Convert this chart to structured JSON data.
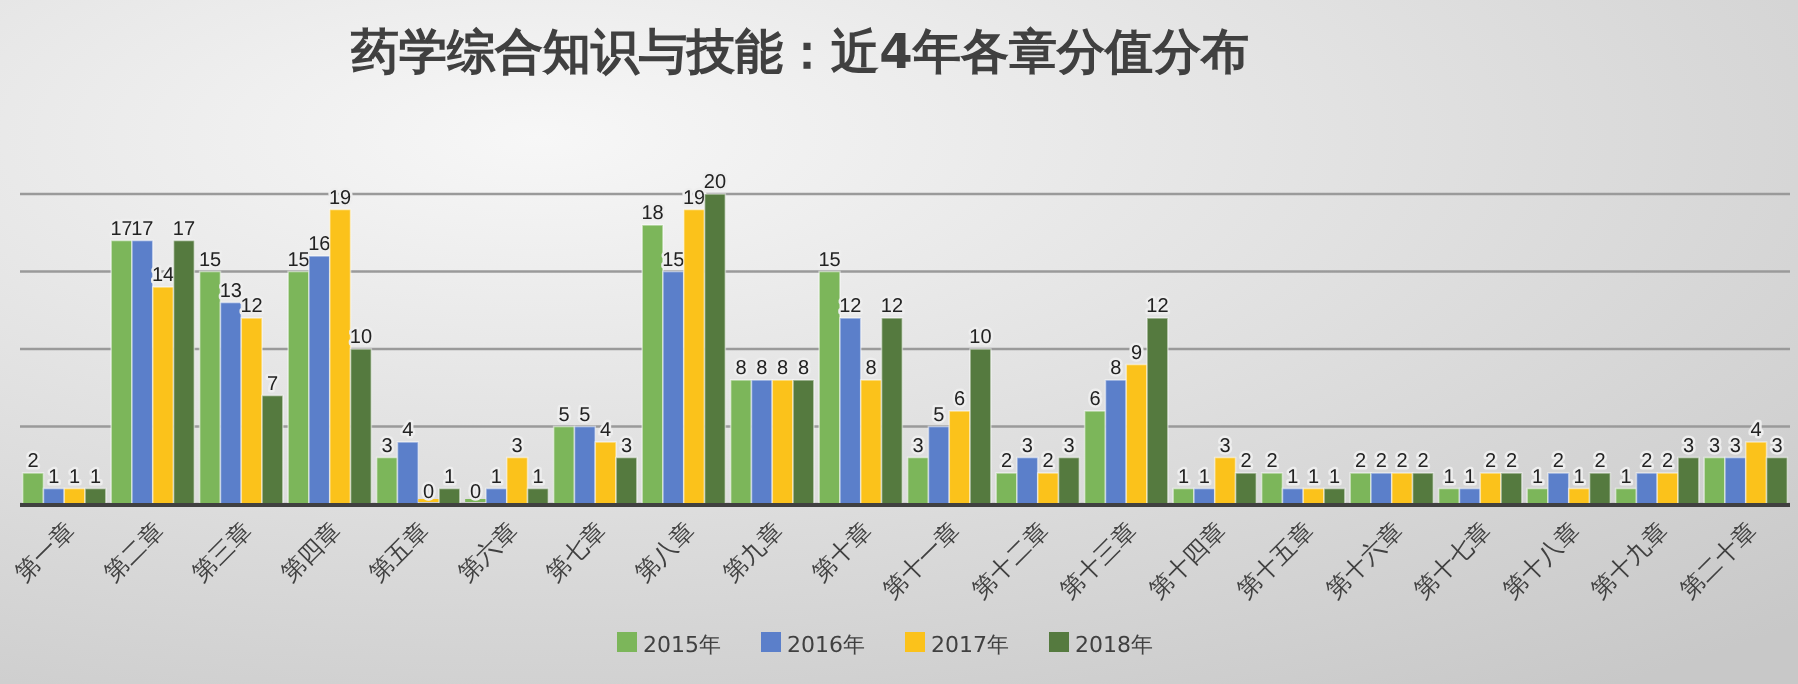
{
  "chart_data": {
    "type": "bar",
    "title": "药学综合知识与技能：近4年各章分值分布",
    "categories": [
      "第一章",
      "第二章",
      "第三章",
      "第四章",
      "第五章",
      "第六章",
      "第七章",
      "第八章",
      "第九章",
      "第十章",
      "第十一章",
      "第十二章",
      "第十三章",
      "第十四章",
      "第十五章",
      "第十六章",
      "第十七章",
      "第十八章",
      "第十九章",
      "第二十章"
    ],
    "series": [
      {
        "name": "2015年",
        "color": "#7cb65a",
        "values": [
          2,
          17,
          15,
          15,
          3,
          0,
          5,
          18,
          8,
          15,
          3,
          2,
          6,
          1,
          2,
          2,
          1,
          1,
          1,
          3
        ]
      },
      {
        "name": "2016年",
        "color": "#5b7fca",
        "values": [
          1,
          17,
          13,
          16,
          4,
          1,
          5,
          15,
          8,
          12,
          5,
          3,
          8,
          1,
          1,
          2,
          1,
          2,
          2,
          3
        ]
      },
      {
        "name": "2017年",
        "color": "#fbc21b",
        "values": [
          1,
          14,
          12,
          19,
          0,
          3,
          4,
          19,
          8,
          8,
          6,
          2,
          9,
          3,
          1,
          2,
          2,
          1,
          2,
          4
        ]
      },
      {
        "name": "2018年",
        "color": "#557a3f",
        "values": [
          1,
          17,
          7,
          10,
          1,
          1,
          3,
          20,
          8,
          12,
          10,
          3,
          12,
          2,
          1,
          2,
          2,
          2,
          3,
          3
        ]
      }
    ],
    "ylim": [
      0,
      20
    ],
    "yticks": [
      {
        "value": 0,
        "label": null
      },
      {
        "value": 5,
        "label": null
      },
      {
        "value": 10,
        "label": null
      },
      {
        "value": 15,
        "label": null
      },
      {
        "value": 20,
        "label": null
      }
    ],
    "tick_labels": "x",
    "grid": "y",
    "legend": "bottom",
    "data_labels": true
  }
}
